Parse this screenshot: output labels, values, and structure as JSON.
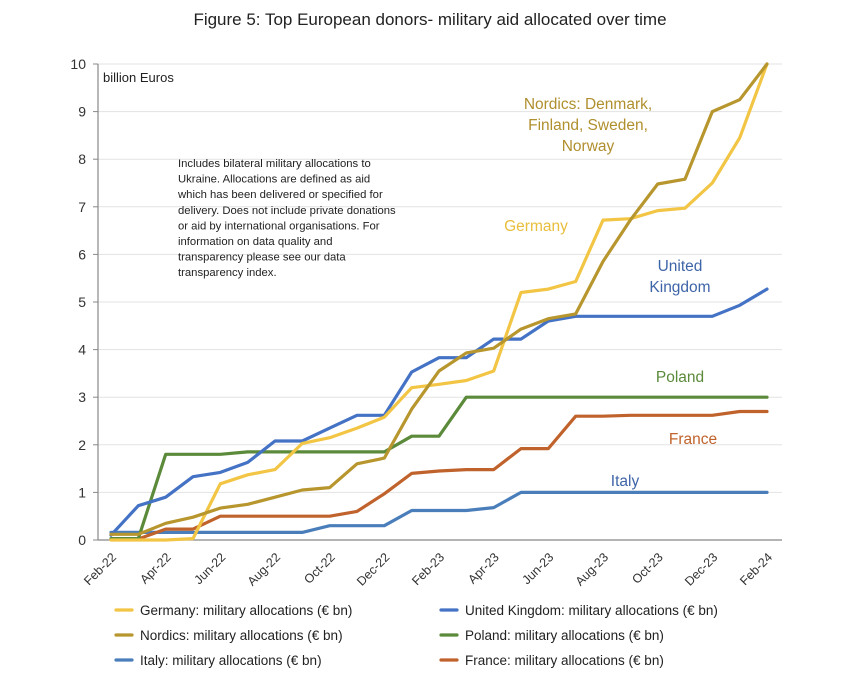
{
  "chart_data": {
    "type": "line",
    "title": "Figure 5: Top European donors- military aid allocated over time",
    "ylabel": "billion Euros",
    "xlabel": "",
    "ylim": [
      0,
      10
    ],
    "yticks": [
      0,
      1,
      2,
      3,
      4,
      5,
      6,
      7,
      8,
      9,
      10
    ],
    "grid": true,
    "legend_position": "bottom",
    "x": [
      "Feb-22",
      "Mar-22",
      "Apr-22",
      "May-22",
      "Jun-22",
      "Jul-22",
      "Aug-22",
      "Sep-22",
      "Oct-22",
      "Nov-22",
      "Dec-22",
      "Jan-23",
      "Feb-23",
      "Mar-23",
      "Apr-23",
      "May-23",
      "Jun-23",
      "Jul-23",
      "Aug-23",
      "Sep-23",
      "Oct-23",
      "Nov-23",
      "Dec-23",
      "Jan-24",
      "Feb-24"
    ],
    "xtick_labels": [
      "Feb-22",
      "Apr-22",
      "Jun-22",
      "Aug-22",
      "Oct-22",
      "Dec-22",
      "Feb-23",
      "Apr-23",
      "Jun-23",
      "Aug-23",
      "Oct-23",
      "Dec-23",
      "Feb-24"
    ],
    "note": [
      "Includes bilateral military allocations to",
      "Ukraine. Allocations are defined as aid",
      "which has been delivered or specified for",
      "delivery. Does not include private donations",
      "or aid by international organisations.  For",
      "information on data quality and",
      "transparency please see our data",
      "transparency index."
    ],
    "series": [
      {
        "name": "Germany: military allocations (€ bn)",
        "label": [
          "Germany"
        ],
        "color": "#F2C545",
        "values": [
          0,
          0,
          0,
          0.03,
          1.18,
          1.37,
          1.48,
          2.03,
          2.15,
          2.35,
          2.58,
          3.2,
          3.27,
          3.35,
          3.55,
          5.2,
          5.27,
          5.43,
          6.72,
          6.75,
          6.92,
          6.97,
          7.5,
          8.45,
          10.0
        ]
      },
      {
        "name": "Nordics: military allocations (€ bn)",
        "label": [
          "Nordics: Denmark,",
          "Finland, Sweden,",
          "Norway"
        ],
        "color": "#B8962E",
        "values": [
          0.12,
          0.12,
          0.35,
          0.48,
          0.67,
          0.75,
          0.9,
          1.05,
          1.1,
          1.6,
          1.72,
          2.75,
          3.55,
          3.93,
          4.03,
          4.43,
          4.65,
          4.75,
          5.85,
          6.72,
          7.48,
          7.58,
          9.0,
          9.25,
          10.0
        ]
      },
      {
        "name": "United Kingdom: military allocations (€ bn)",
        "label": [
          "United",
          "Kingdom"
        ],
        "color": "#4472C4",
        "values": [
          0.1,
          0.72,
          0.9,
          1.33,
          1.42,
          1.63,
          2.08,
          2.08,
          2.35,
          2.62,
          2.62,
          3.53,
          3.83,
          3.83,
          4.22,
          4.22,
          4.6,
          4.7,
          4.7,
          4.7,
          4.7,
          4.7,
          4.7,
          4.93,
          5.27
        ]
      },
      {
        "name": "Poland: military allocations (€ bn)",
        "label": [
          "Poland"
        ],
        "color": "#5B8A3A",
        "values": [
          0.03,
          0.03,
          1.8,
          1.8,
          1.8,
          1.85,
          1.85,
          1.85,
          1.85,
          1.85,
          1.85,
          2.18,
          2.18,
          3.0,
          3.0,
          3.0,
          3.0,
          3.0,
          3.0,
          3.0,
          3.0,
          3.0,
          3.0,
          3.0,
          3.0
        ]
      },
      {
        "name": "Italy: military allocations (€ bn)",
        "label": [
          "Italy"
        ],
        "color": "#4A7EBB",
        "values": [
          0.16,
          0.16,
          0.16,
          0.16,
          0.16,
          0.16,
          0.16,
          0.16,
          0.3,
          0.3,
          0.3,
          0.62,
          0.62,
          0.62,
          0.68,
          1.0,
          1.0,
          1.0,
          1.0,
          1.0,
          1.0,
          1.0,
          1.0,
          1.0,
          1.0
        ]
      },
      {
        "name": "France: military allocations (€ bn)",
        "label": [
          "France"
        ],
        "color": "#C0622B",
        "values": [
          0.02,
          0.02,
          0.23,
          0.23,
          0.5,
          0.5,
          0.5,
          0.5,
          0.5,
          0.6,
          0.97,
          1.4,
          1.45,
          1.48,
          1.48,
          1.92,
          1.92,
          2.6,
          2.6,
          2.62,
          2.62,
          2.62,
          2.62,
          2.7,
          2.7
        ]
      }
    ]
  }
}
